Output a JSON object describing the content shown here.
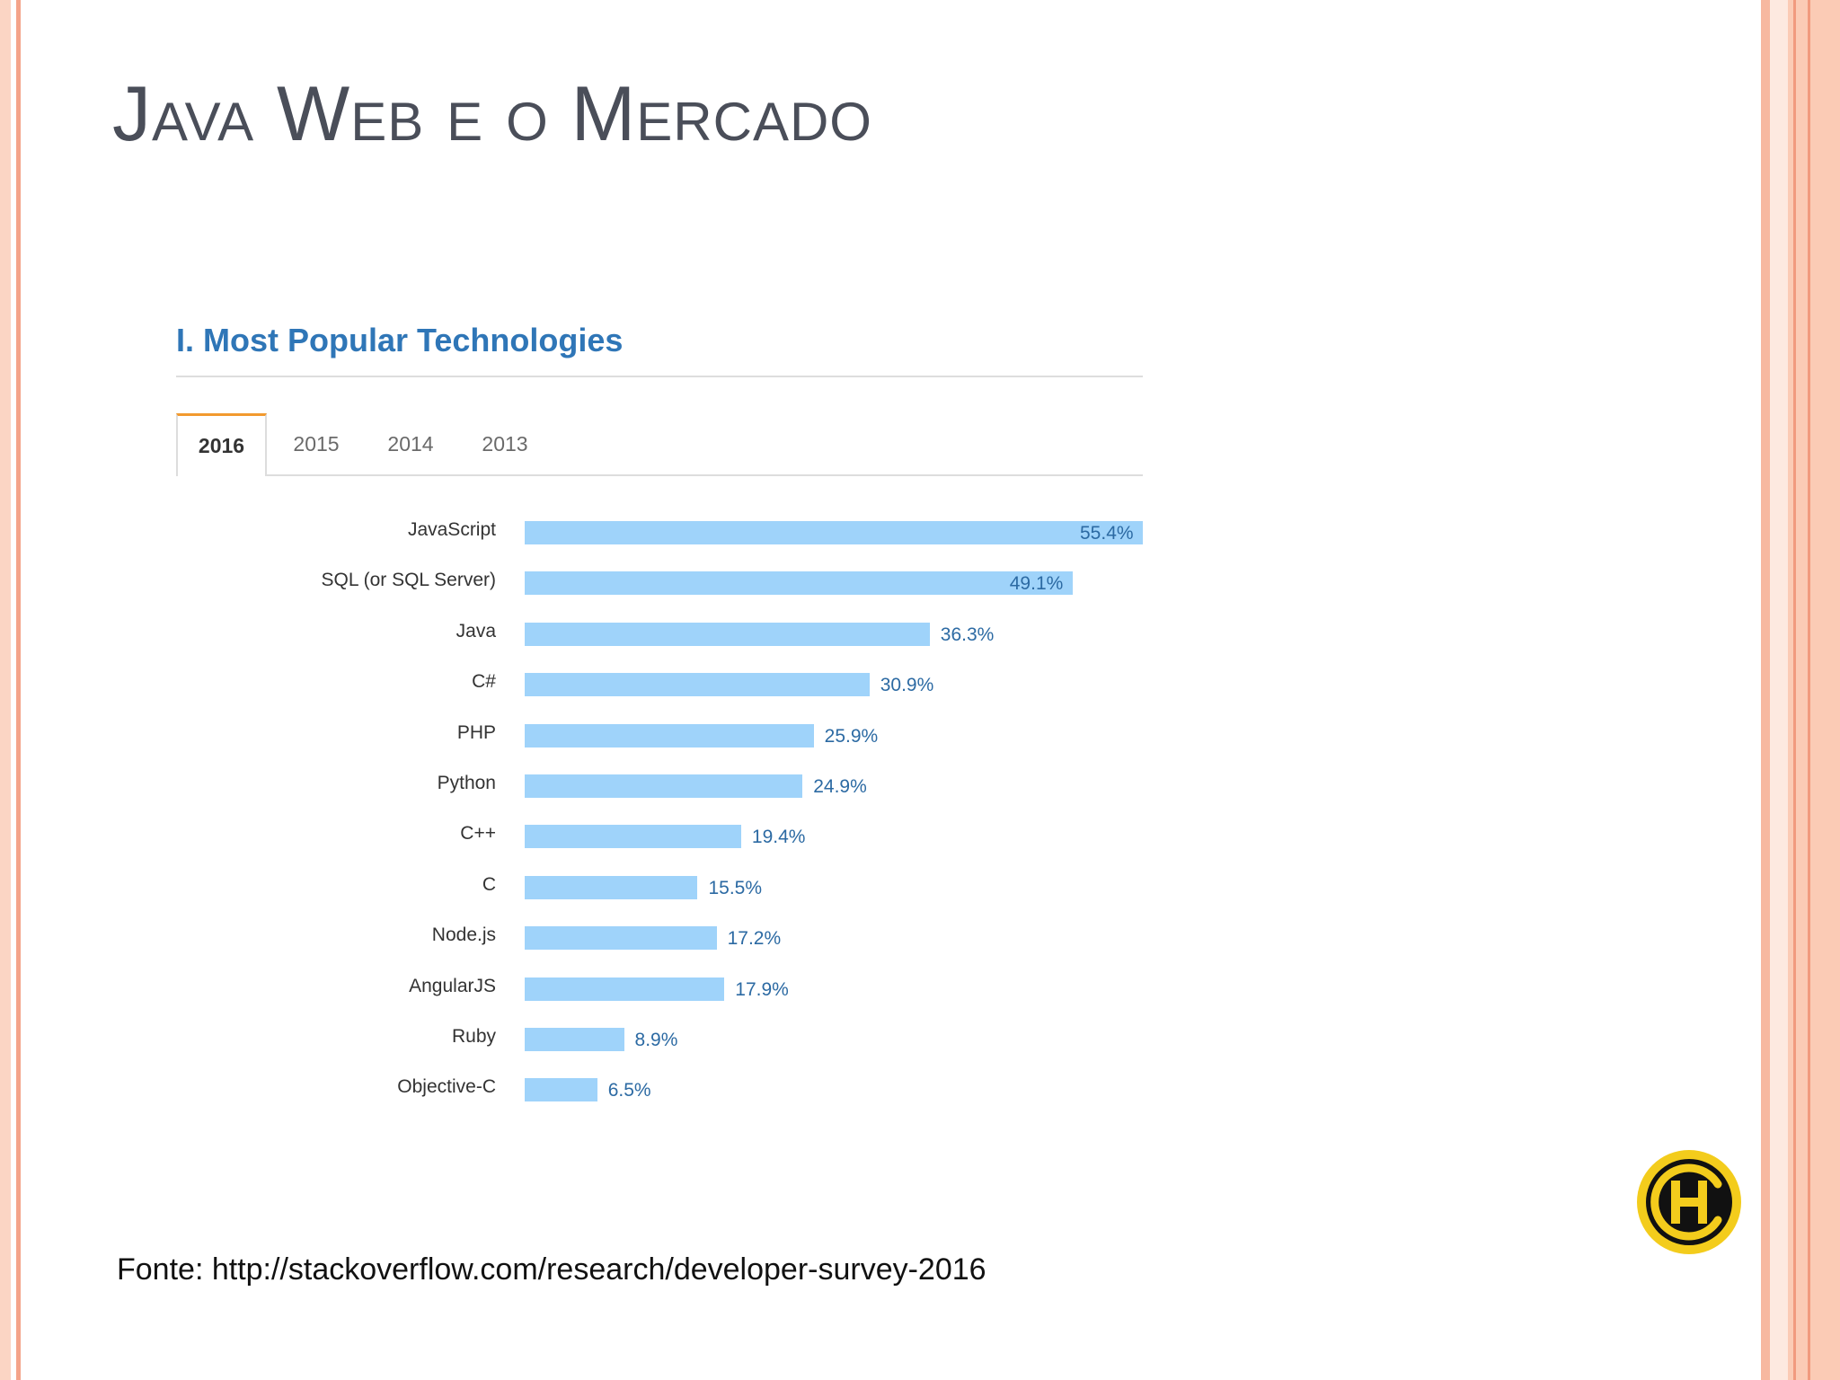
{
  "slide": {
    "title": "Java Web e o Mercado",
    "source_note": "Fonte: http://stackoverflow.com/research/developer-survey-2016"
  },
  "colors": {
    "bar": "#9fd3fa",
    "value_text": "#2c6aa3",
    "heading": "#2f76b7",
    "active_tab_accent": "#f29a2e",
    "logo_yellow": "#f3cc1c"
  },
  "tabs": [
    {
      "label": "2016",
      "active": true
    },
    {
      "label": "2015",
      "active": false
    },
    {
      "label": "2014",
      "active": false
    },
    {
      "label": "2013",
      "active": false
    }
  ],
  "logo": {
    "icon": "h-circle-logo-icon"
  },
  "chart_data": {
    "type": "bar",
    "orientation": "horizontal",
    "title": "I. Most Popular Technologies",
    "categories": [
      "JavaScript",
      "SQL (or SQL Server)",
      "Java",
      "C#",
      "PHP",
      "Python",
      "C++",
      "C",
      "Node.js",
      "AngularJS",
      "Ruby",
      "Objective-C"
    ],
    "values": [
      55.4,
      49.1,
      36.3,
      30.9,
      25.9,
      24.9,
      19.4,
      15.5,
      17.2,
      17.9,
      8.9,
      6.5
    ],
    "value_labels": [
      "55.4%",
      "49.1%",
      "36.3%",
      "30.9%",
      "25.9%",
      "24.9%",
      "19.4%",
      "15.5%",
      "17.2%",
      "17.9%",
      "8.9%",
      "6.5%"
    ],
    "unit": "%",
    "xlim": [
      0,
      55.4
    ],
    "grid": false,
    "legend": "none"
  }
}
